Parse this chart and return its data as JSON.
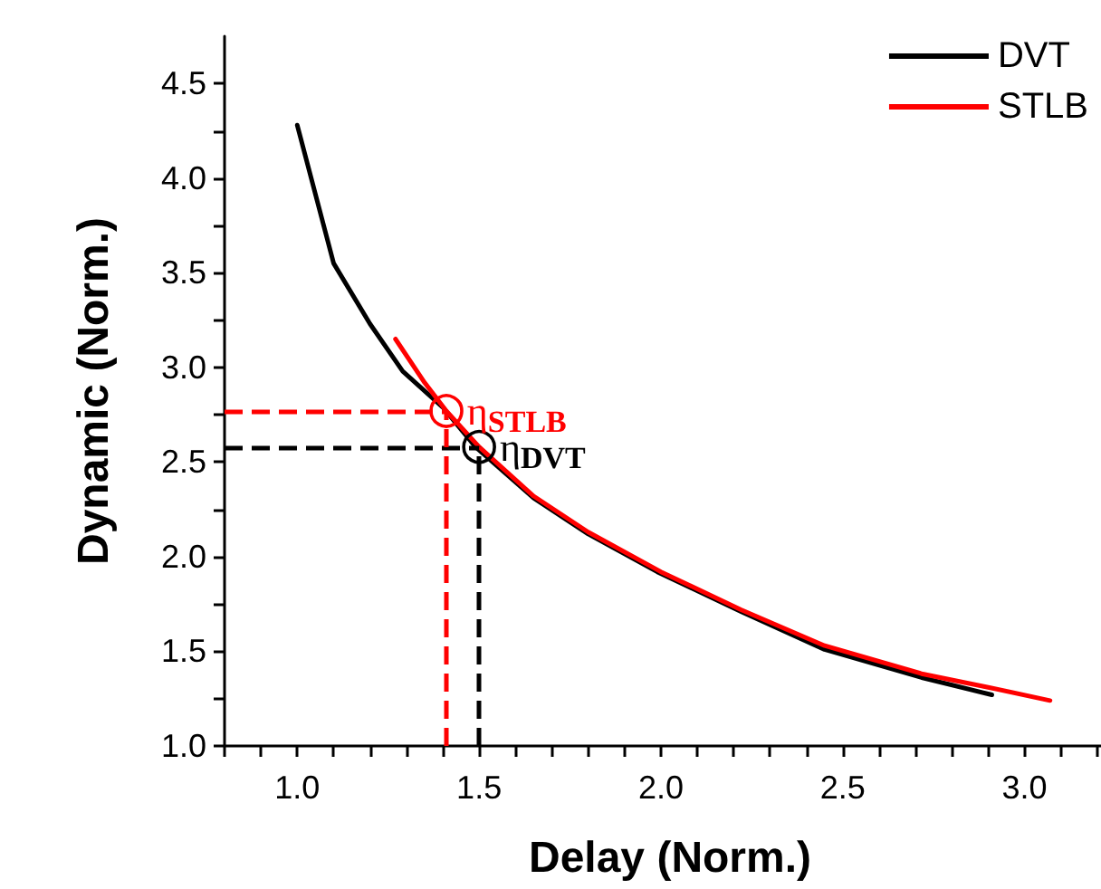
{
  "chart_data": {
    "type": "line",
    "xlabel": "Delay (Norm.)",
    "ylabel": "Dynamic (Norm.)",
    "xlim": [
      0.8,
      3.25
    ],
    "ylim": [
      1.0,
      4.75
    ],
    "xticks": [
      {
        "value": 0.8,
        "label": null
      },
      {
        "value": 0.9,
        "label": null
      },
      {
        "value": 1.0,
        "label": "1.0"
      },
      {
        "value": 1.1,
        "label": null
      },
      {
        "value": 1.2,
        "label": null
      },
      {
        "value": 1.3,
        "label": null
      },
      {
        "value": 1.4,
        "label": null
      },
      {
        "value": 1.5,
        "label": "1.5"
      },
      {
        "value": 1.6,
        "label": null
      },
      {
        "value": 1.7,
        "label": null
      },
      {
        "value": 1.8,
        "label": null
      },
      {
        "value": 1.9,
        "label": null
      },
      {
        "value": 2.0,
        "label": "2.0"
      },
      {
        "value": 2.1,
        "label": null
      },
      {
        "value": 2.2,
        "label": null
      },
      {
        "value": 2.3,
        "label": null
      },
      {
        "value": 2.4,
        "label": null
      },
      {
        "value": 2.5,
        "label": "2.5"
      },
      {
        "value": 2.6,
        "label": null
      },
      {
        "value": 2.7,
        "label": null
      },
      {
        "value": 2.8,
        "label": null
      },
      {
        "value": 2.9,
        "label": null
      },
      {
        "value": 3.0,
        "label": "3.0"
      },
      {
        "value": 3.1,
        "label": null
      },
      {
        "value": 3.2,
        "label": null
      }
    ],
    "yticks": [
      {
        "value": 1.0,
        "label": "1.0"
      },
      {
        "value": 1.25,
        "label": null
      },
      {
        "value": 1.5,
        "label": "1.5"
      },
      {
        "value": 1.75,
        "label": null
      },
      {
        "value": 2.0,
        "label": "2.0"
      },
      {
        "value": 2.25,
        "label": null
      },
      {
        "value": 2.5,
        "label": "2.5"
      },
      {
        "value": 2.75,
        "label": null
      },
      {
        "value": 3.0,
        "label": "3.0"
      },
      {
        "value": 3.25,
        "label": null
      },
      {
        "value": 3.5,
        "label": "3.5"
      },
      {
        "value": 3.75,
        "label": null
      },
      {
        "value": 4.0,
        "label": "4.0"
      },
      {
        "value": 4.25,
        "label": null
      },
      {
        "value": 4.5,
        "label": "4.5"
      }
    ],
    "series": [
      {
        "name": "DVT",
        "color": "#000000",
        "x": [
          1.0,
          1.1,
          1.2,
          1.29,
          1.4,
          1.49,
          1.65,
          1.8,
          1.99,
          2.22,
          2.45,
          2.72,
          2.91
        ],
        "values": [
          4.28,
          3.55,
          3.23,
          2.98,
          2.79,
          2.58,
          2.31,
          2.12,
          1.92,
          1.71,
          1.51,
          1.36,
          1.27
        ]
      },
      {
        "name": "STLB",
        "color": "#ff0000",
        "x": [
          1.27,
          1.35,
          1.41,
          1.5,
          1.65,
          1.8,
          2.0,
          2.22,
          2.45,
          2.72,
          2.9,
          3.07
        ],
        "values": [
          3.15,
          2.92,
          2.77,
          2.58,
          2.32,
          2.13,
          1.92,
          1.72,
          1.53,
          1.38,
          1.31,
          1.24
        ]
      }
    ],
    "annotations": [
      {
        "text": "η$_{DVT}$",
        "x": 1.5,
        "y": 2.58
      },
      {
        "text": "η$_{STLB}$",
        "x": 1.41,
        "y": 2.77
      }
    ],
    "ref_lines": [
      {
        "axis": "y",
        "value": 2.58,
        "color": "#000000",
        "line_style": "dashed"
      },
      {
        "axis": "x",
        "value": 1.5,
        "color": "#000000",
        "line_style": "dashed"
      },
      {
        "axis": "y",
        "value": 2.77,
        "color": "#ff0000",
        "line_style": "dashed"
      },
      {
        "axis": "x",
        "value": 1.41,
        "color": "#ff0000",
        "line_style": "dashed"
      }
    ],
    "legend": "top right",
    "grid": false,
    "marker": "none",
    "line_style": "solid"
  }
}
